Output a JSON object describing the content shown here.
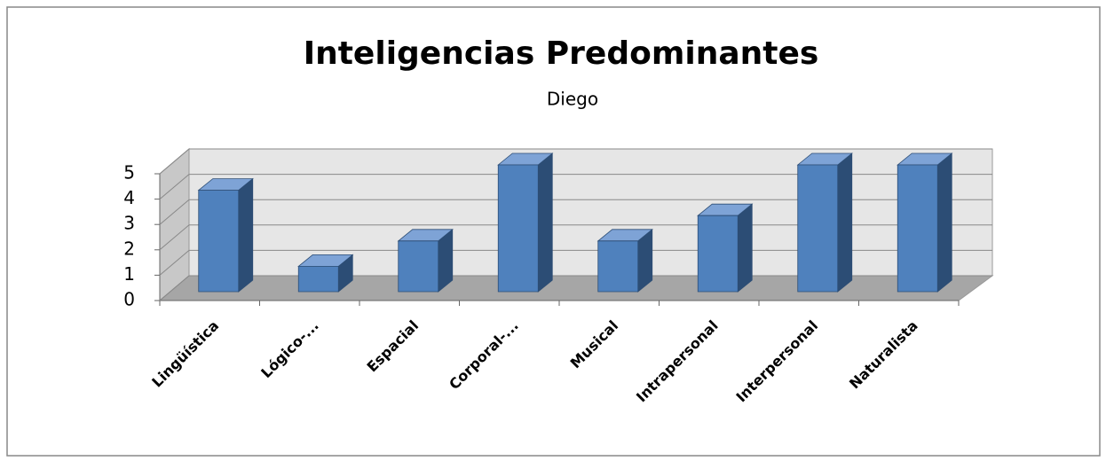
{
  "chart_data": {
    "type": "bar",
    "title": "Inteligencias Predominantes",
    "subtitle": "Diego",
    "categories": [
      "Lingüística",
      "Lógico-...",
      "Espacial",
      "Corporal-...",
      "Musical",
      "Intrapersonal",
      "Interpersonal",
      "Naturalista"
    ],
    "values": [
      4,
      1,
      2,
      5,
      2,
      3,
      5,
      5
    ],
    "color": "#4f81bd",
    "ylim": [
      0,
      5
    ],
    "yticks": [
      0,
      1,
      2,
      3,
      4,
      5
    ],
    "grid": true
  }
}
